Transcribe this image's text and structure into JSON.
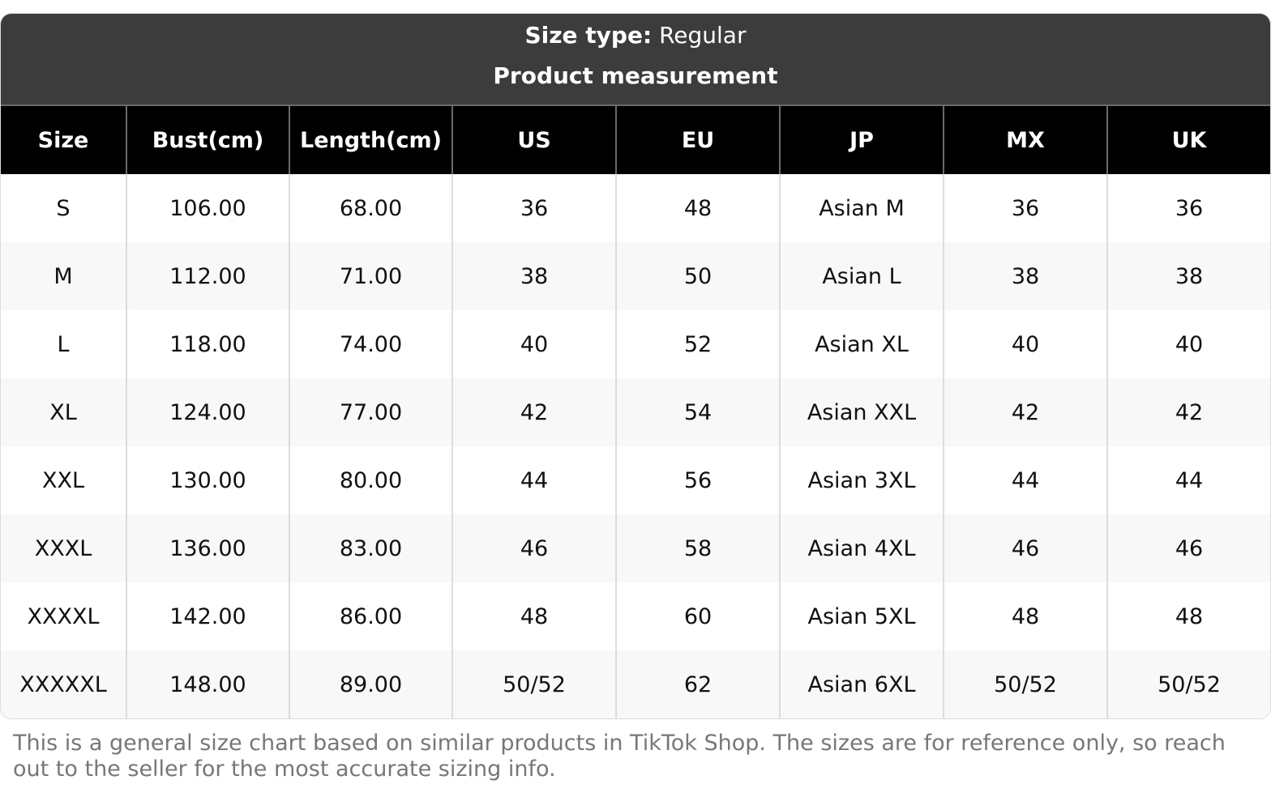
{
  "header": {
    "size_type_label": "Size type:",
    "size_type_value": "Regular",
    "title": "Product measurement"
  },
  "table": {
    "columns": [
      "Size",
      "Bust(cm)",
      "Length(cm)",
      "US",
      "EU",
      "JP",
      "MX",
      "UK"
    ],
    "rows": [
      [
        "S",
        "106.00",
        "68.00",
        "36",
        "48",
        "Asian M",
        "36",
        "36"
      ],
      [
        "M",
        "112.00",
        "71.00",
        "38",
        "50",
        "Asian L",
        "38",
        "38"
      ],
      [
        "L",
        "118.00",
        "74.00",
        "40",
        "52",
        "Asian XL",
        "40",
        "40"
      ],
      [
        "XL",
        "124.00",
        "77.00",
        "42",
        "54",
        "Asian XXL",
        "42",
        "42"
      ],
      [
        "XXL",
        "130.00",
        "80.00",
        "44",
        "56",
        "Asian 3XL",
        "44",
        "44"
      ],
      [
        "XXXL",
        "136.00",
        "83.00",
        "46",
        "58",
        "Asian 4XL",
        "46",
        "46"
      ],
      [
        "XXXXL",
        "142.00",
        "86.00",
        "48",
        "60",
        "Asian 5XL",
        "48",
        "48"
      ],
      [
        "XXXXXL",
        "148.00",
        "89.00",
        "50/52",
        "62",
        "Asian 6XL",
        "50/52",
        "50/52"
      ]
    ]
  },
  "footer": {
    "note": "This is a general size chart based on similar products in TikTok Shop. The sizes are for reference only, so reach out to the seller for the most accurate sizing info."
  }
}
